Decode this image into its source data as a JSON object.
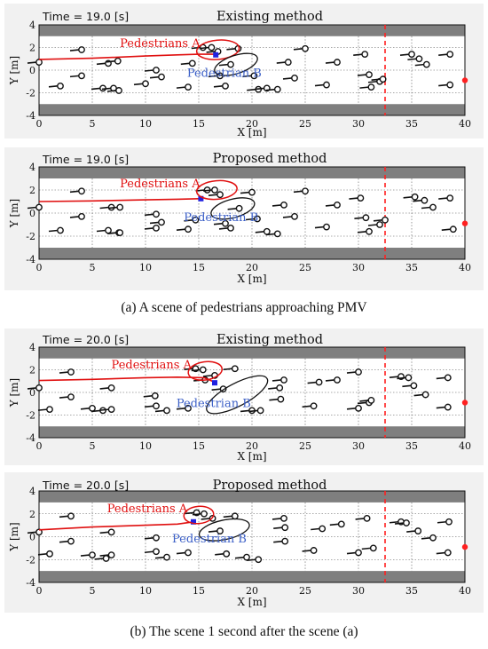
{
  "captions": {
    "a": "(a) A scene of pedestrians approaching PMV",
    "b": "(b) The scene 1 second after the scene (a)"
  },
  "colors": {
    "road": "#7f7f7f",
    "walkway": "#ffffff",
    "path": "#e01010",
    "robot_marker": "#2020e0",
    "goal": "#ff2020",
    "ellipse_a": "#e01010",
    "ellipse_b": "#111111"
  },
  "chart_data": [
    {
      "type": "scatter",
      "title": "Existing method",
      "time_label": "Time = 19.0 [s]",
      "xlabel": "X [m]",
      "ylabel": "Y [m]",
      "xlim": [
        0,
        40
      ],
      "ylim": [
        -4,
        4
      ],
      "xticks": [
        "0",
        "5",
        "10",
        "15",
        "20",
        "25",
        "30",
        "35",
        "40"
      ],
      "yticks": [
        "4",
        "2",
        "0",
        "-2",
        "-4"
      ],
      "annotations": {
        "group_a": "Pedestrians A",
        "group_b": "Pedestrian B"
      },
      "robot_path": [
        [
          0,
          0.95
        ],
        [
          5,
          1.05
        ],
        [
          10,
          1.25
        ],
        [
          13,
          1.35
        ],
        [
          15,
          1.4
        ],
        [
          16.6,
          1.4
        ]
      ],
      "robot_pos": [
        16.6,
        1.35
      ],
      "goal": [
        40,
        -0.9
      ],
      "goal_line_x": 32.5,
      "ellipse_a": {
        "cx": 16.8,
        "cy": 1.8,
        "rx": 2.0,
        "ry": 0.85,
        "rot": -5
      },
      "ellipse_b": {
        "cx": 18.5,
        "cy": 0.5,
        "rx": 2.1,
        "ry": 0.8,
        "rot": -18
      },
      "pedestrians": [
        [
          0,
          0.7
        ],
        [
          2,
          -1.4
        ],
        [
          4,
          1.8
        ],
        [
          4,
          -0.5
        ],
        [
          6.5,
          0.6
        ],
        [
          6,
          -1.6
        ],
        [
          7,
          -1.6
        ],
        [
          7.4,
          0.8
        ],
        [
          7.5,
          -1.8
        ],
        [
          10,
          -1.2
        ],
        [
          11,
          0.0
        ],
        [
          11.5,
          -0.6
        ],
        [
          14,
          -1.5
        ],
        [
          14.4,
          0.6
        ],
        [
          15.4,
          2.0
        ],
        [
          16.2,
          2.0
        ],
        [
          16.8,
          1.65
        ],
        [
          17,
          -0.5
        ],
        [
          17.5,
          -1.4
        ],
        [
          18,
          0.5
        ],
        [
          18.7,
          1.9
        ],
        [
          20.2,
          -0.5
        ],
        [
          20.6,
          -1.7
        ],
        [
          21.4,
          -1.6
        ],
        [
          22.4,
          -1.7
        ],
        [
          23.4,
          0.7
        ],
        [
          24,
          -0.7
        ],
        [
          25,
          1.9
        ],
        [
          27,
          -1.3
        ],
        [
          28,
          0.7
        ],
        [
          30.6,
          1.4
        ],
        [
          31,
          -0.4
        ],
        [
          31.2,
          -1.5
        ],
        [
          32,
          -1.0
        ],
        [
          32.3,
          -0.8
        ],
        [
          35,
          1.4
        ],
        [
          35.7,
          1.0
        ],
        [
          36.4,
          0.5
        ],
        [
          38.6,
          1.4
        ],
        [
          38.6,
          -1.3
        ]
      ]
    },
    {
      "type": "scatter",
      "title": "Proposed method",
      "time_label": "Time = 19.0 [s]",
      "xlabel": "X [m]",
      "ylabel": "Y [m]",
      "xlim": [
        0,
        40
      ],
      "ylim": [
        -4,
        4
      ],
      "xticks": [
        "0",
        "5",
        "10",
        "15",
        "20",
        "25",
        "30",
        "35",
        "40"
      ],
      "yticks": [
        "4",
        "2",
        "0",
        "-2",
        "-4"
      ],
      "annotations": {
        "group_a": "Pedestrians A",
        "group_b": "Pedestrian B"
      },
      "robot_path": [
        [
          0,
          1.0
        ],
        [
          5,
          1.05
        ],
        [
          10,
          1.15
        ],
        [
          13,
          1.2
        ],
        [
          15,
          1.25
        ]
      ],
      "robot_pos": [
        15.2,
        1.25
      ],
      "goal": [
        40,
        -0.9
      ],
      "goal_line_x": 32.5,
      "ellipse_a": {
        "cx": 16.7,
        "cy": 2.0,
        "rx": 1.9,
        "ry": 0.8,
        "rot": -5
      },
      "ellipse_b": {
        "cx": 18.2,
        "cy": 0.4,
        "rx": 2.1,
        "ry": 0.8,
        "rot": -15
      },
      "pedestrians": [
        [
          0,
          0.5
        ],
        [
          2,
          -1.5
        ],
        [
          4,
          1.9
        ],
        [
          4,
          -0.3
        ],
        [
          6.8,
          0.5
        ],
        [
          6.5,
          -1.5
        ],
        [
          7.5,
          -1.7
        ],
        [
          7.6,
          0.5
        ],
        [
          7.6,
          -1.7
        ],
        [
          11,
          -1.3
        ],
        [
          11,
          -0.1
        ],
        [
          11.5,
          -0.8
        ],
        [
          14,
          -1.4
        ],
        [
          14.7,
          -0.6
        ],
        [
          15.8,
          2.0
        ],
        [
          16.5,
          2.0
        ],
        [
          17,
          1.6
        ],
        [
          17.5,
          -0.9
        ],
        [
          18,
          -1.3
        ],
        [
          18.8,
          0.4
        ],
        [
          20,
          1.8
        ],
        [
          20.5,
          -0.5
        ],
        [
          21.4,
          -1.6
        ],
        [
          22.4,
          -1.8
        ],
        [
          23,
          0.7
        ],
        [
          24,
          -0.3
        ],
        [
          25,
          1.9
        ],
        [
          27,
          -1.2
        ],
        [
          28,
          0.7
        ],
        [
          30.2,
          1.3
        ],
        [
          30.7,
          -0.4
        ],
        [
          31,
          -1.6
        ],
        [
          32,
          -1.0
        ],
        [
          32.5,
          -0.6
        ],
        [
          35.3,
          1.4
        ],
        [
          36.2,
          1.1
        ],
        [
          37,
          0.5
        ],
        [
          38.6,
          1.3
        ],
        [
          38.9,
          -1.4
        ]
      ]
    },
    {
      "type": "scatter",
      "title": "Existing method",
      "time_label": "Time = 20.0 [s]",
      "xlabel": "X [m]",
      "ylabel": "Y [m]",
      "xlim": [
        0,
        40
      ],
      "ylim": [
        -4,
        4
      ],
      "xticks": [
        "0",
        "5",
        "10",
        "15",
        "20",
        "25",
        "30",
        "35",
        "40"
      ],
      "yticks": [
        "4",
        "2",
        "0",
        "-2",
        "-4"
      ],
      "annotations": {
        "group_a": "Pedestrians A",
        "group_b": "Pedestrian B"
      },
      "robot_path": [
        [
          0,
          1.05
        ],
        [
          5,
          1.15
        ],
        [
          10,
          1.3
        ],
        [
          13,
          1.35
        ],
        [
          15.5,
          1.3
        ],
        [
          16.5,
          0.9
        ]
      ],
      "robot_pos": [
        16.5,
        0.85
      ],
      "goal": [
        40,
        -0.9
      ],
      "goal_line_x": 32.5,
      "ellipse_a": {
        "cx": 15.6,
        "cy": 1.9,
        "rx": 1.6,
        "ry": 0.8,
        "rot": -8
      },
      "ellipse_b": {
        "cx": 18.6,
        "cy": -0.2,
        "rx": 3.2,
        "ry": 1.0,
        "rot": -28
      },
      "pedestrians": [
        [
          0,
          0.4
        ],
        [
          3,
          1.8
        ],
        [
          3,
          -0.4
        ],
        [
          1,
          -1.5
        ],
        [
          5,
          -1.4
        ],
        [
          6,
          -1.6
        ],
        [
          6.8,
          0.4
        ],
        [
          6.8,
          -1.5
        ],
        [
          11,
          -1.2
        ],
        [
          10.9,
          -0.3
        ],
        [
          12,
          -1.6
        ],
        [
          14,
          -1.4
        ],
        [
          14.7,
          2.1
        ],
        [
          15.4,
          2.0
        ],
        [
          15.6,
          1.1
        ],
        [
          16.5,
          1.5
        ],
        [
          17.3,
          0.3
        ],
        [
          18.4,
          2.1
        ],
        [
          20,
          -1.6
        ],
        [
          20.8,
          -1.6
        ],
        [
          22.6,
          0.4
        ],
        [
          23,
          1.1
        ],
        [
          22.7,
          -0.6
        ],
        [
          25.8,
          -1.2
        ],
        [
          26.3,
          0.9
        ],
        [
          28,
          1.1
        ],
        [
          30,
          -1.4
        ],
        [
          31,
          -0.9
        ],
        [
          31.2,
          -0.7
        ],
        [
          30,
          1.8
        ],
        [
          34,
          1.4
        ],
        [
          34.7,
          1.3
        ],
        [
          35.2,
          0.6
        ],
        [
          36.3,
          -0.2
        ],
        [
          38.4,
          1.3
        ],
        [
          38.4,
          -1.3
        ]
      ]
    },
    {
      "type": "scatter",
      "title": "Proposed method",
      "time_label": "Time = 20.0 [s]",
      "xlabel": "X [m]",
      "ylabel": "Y [m]",
      "xlim": [
        0,
        40
      ],
      "ylim": [
        -4,
        4
      ],
      "xticks": [
        "0",
        "5",
        "10",
        "15",
        "20",
        "25",
        "30",
        "35",
        "40"
      ],
      "yticks": [
        "4",
        "2",
        "0",
        "-2",
        "-4"
      ],
      "annotations": {
        "group_a": "Pedestrians A",
        "group_b": "Pedestrian B"
      },
      "robot_path": [
        [
          0,
          0.6
        ],
        [
          5,
          0.85
        ],
        [
          10,
          1.0
        ],
        [
          13,
          1.1
        ],
        [
          14.5,
          1.3
        ]
      ],
      "robot_pos": [
        14.5,
        1.3
      ],
      "goal": [
        40,
        -0.9
      ],
      "goal_line_x": 32.5,
      "ellipse_a": {
        "cx": 15.0,
        "cy": 1.9,
        "rx": 1.4,
        "ry": 0.75,
        "rot": -5
      },
      "ellipse_b": {
        "cx": 17.4,
        "cy": 0.6,
        "rx": 2.4,
        "ry": 0.85,
        "rot": -12
      },
      "pedestrians": [
        [
          0,
          0.4
        ],
        [
          3,
          1.8
        ],
        [
          3,
          -0.4
        ],
        [
          1,
          -1.5
        ],
        [
          5,
          -1.6
        ],
        [
          6.3,
          -1.9
        ],
        [
          6.8,
          0.4
        ],
        [
          6.8,
          -1.6
        ],
        [
          11,
          -1.3
        ],
        [
          11,
          -0.1
        ],
        [
          12,
          -1.8
        ],
        [
          14,
          -1.4
        ],
        [
          14.8,
          2.1
        ],
        [
          15.5,
          2.0
        ],
        [
          16.3,
          1.6
        ],
        [
          17,
          0.5
        ],
        [
          17.6,
          -1.5
        ],
        [
          18.4,
          1.8
        ],
        [
          19.5,
          -1.8
        ],
        [
          20.6,
          -2.0
        ],
        [
          23,
          1.6
        ],
        [
          23.1,
          0.8
        ],
        [
          23.1,
          -0.4
        ],
        [
          25.8,
          -1.2
        ],
        [
          26.6,
          0.7
        ],
        [
          28.4,
          1.1
        ],
        [
          30,
          -1.4
        ],
        [
          31.4,
          -1.0
        ],
        [
          30.8,
          1.6
        ],
        [
          34,
          1.3
        ],
        [
          34.5,
          1.2
        ],
        [
          35.6,
          0.5
        ],
        [
          37,
          -0.1
        ],
        [
          38.5,
          1.3
        ],
        [
          38.4,
          -1.4
        ]
      ]
    }
  ]
}
